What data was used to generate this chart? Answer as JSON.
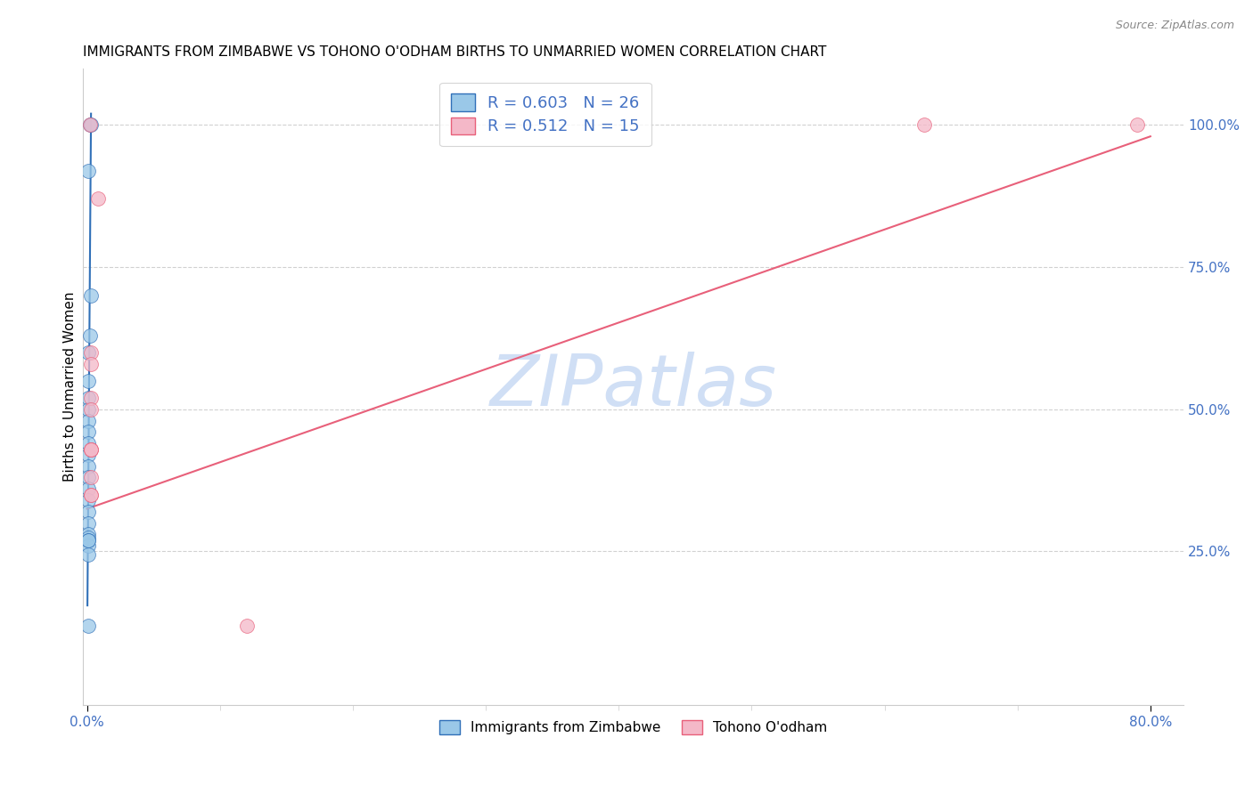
{
  "title": "IMMIGRANTS FROM ZIMBABWE VS TOHONO O'ODHAM BIRTHS TO UNMARRIED WOMEN CORRELATION CHART",
  "source": "Source: ZipAtlas.com",
  "ylabel": "Births to Unmarried Women",
  "watermark": "ZIPatlas",
  "blue_r": 0.603,
  "blue_n": 26,
  "pink_r": 0.512,
  "pink_n": 15,
  "blue_scatter_x": [
    0.002,
    0.003,
    0.001,
    0.003,
    0.0025,
    0.0008,
    0.0008,
    0.0008,
    0.0008,
    0.0008,
    0.0008,
    0.0008,
    0.0008,
    0.0008,
    0.0008,
    0.0008,
    0.0008,
    0.0008,
    0.0008,
    0.0008,
    0.0008,
    0.0008,
    0.0008,
    0.0008,
    0.0008,
    0.0008
  ],
  "blue_scatter_y": [
    1.0,
    1.0,
    0.92,
    0.7,
    0.63,
    0.6,
    0.55,
    0.52,
    0.5,
    0.48,
    0.46,
    0.44,
    0.42,
    0.4,
    0.38,
    0.36,
    0.34,
    0.32,
    0.3,
    0.28,
    0.275,
    0.26,
    0.245,
    0.27,
    0.27,
    0.12
  ],
  "pink_scatter_x": [
    0.0025,
    0.008,
    0.003,
    0.003,
    0.003,
    0.003,
    0.003,
    0.003,
    0.003,
    0.003,
    0.003,
    0.63,
    0.79,
    0.12,
    0.003
  ],
  "pink_scatter_y": [
    1.0,
    0.87,
    0.6,
    0.58,
    0.52,
    0.5,
    0.43,
    0.43,
    0.38,
    0.35,
    0.35,
    1.0,
    1.0,
    0.12,
    0.43
  ],
  "blue_line_x": [
    0.0003,
    0.003
  ],
  "blue_line_y": [
    0.155,
    1.02
  ],
  "pink_line_x": [
    0.0,
    0.8
  ],
  "pink_line_y": [
    0.325,
    0.98
  ],
  "legend_label_blue": "Immigrants from Zimbabwe",
  "legend_label_pink": "Tohono O'odham",
  "blue_color": "#9ac8e8",
  "pink_color": "#f4b8c8",
  "blue_line_color": "#3070b8",
  "pink_line_color": "#e8607a",
  "title_fontsize": 11,
  "axis_label_color": "#4472c4",
  "tick_label_color": "#4472c4",
  "watermark_color": "#d0dff5",
  "watermark_fontsize": 58,
  "x_min": -0.003,
  "x_max": 0.825,
  "y_min": -0.02,
  "y_max": 1.1
}
